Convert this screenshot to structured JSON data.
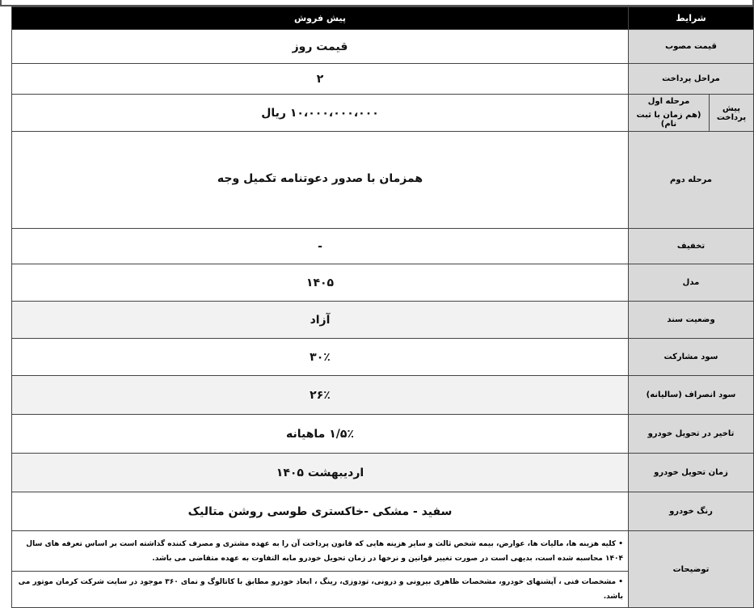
{
  "header": {
    "conditions": "شرایط",
    "presale": "پیش فروش"
  },
  "rows": [
    {
      "label": "قیمت مصوب",
      "value": "قیمت روز"
    },
    {
      "label": "مراحل پرداخت",
      "value": "۲"
    },
    {
      "group": "پیش پرداخت",
      "label": "مرحله اول",
      "sublabel": "(هم زمان با ثبت نام)",
      "value": "۱۰،۰۰۰،۰۰۰،۰۰۰ ریال"
    },
    {
      "label": "مرحله دوم",
      "value": "همزمان با صدور دعوتنامه تکمیل وجه"
    },
    {
      "label": "تخفیف",
      "value": "-"
    },
    {
      "label": "مدل",
      "value": "۱۴۰۵"
    },
    {
      "label": "وضعیت سند",
      "value": "آزاد"
    },
    {
      "label": "سود مشارکت",
      "value": "۳۰٪"
    },
    {
      "label": "سود انصراف (سالیانه)",
      "value": "۲۶٪"
    },
    {
      "label": "تاخیر در تحویل خودرو",
      "value": "۱/۵٪ ماهیانه"
    },
    {
      "label": "زمان تحویل خودرو",
      "value": "اردیبهشت ۱۴۰۵"
    },
    {
      "label": "رنگ خودرو",
      "value": "سفید - مشکی -خاکستری طوسی روشن متالیک"
    }
  ],
  "notes": {
    "label": "توضیحات",
    "items": [
      "• کلیه هزینه ها، مالیات ها، عوارض، بیمه شخص ثالث و سایر هزینه هایی که قانون پرداخت آن را به عهده مشتری و مصرف کننده گذاشته است بر اساس تعرفه های سال ۱۴۰۴ محاسبه شده است، بدیهی است در صورت تغییر قوانین و نرخها در زمان تحویل خودرو مابه التفاوت به عهده متقاضی می باشد.",
      "• مشخصات فنی ، آپشنهای خودرو، مشخصات ظاهری بیرونی و درونی، تودوزی، رینگ ، ابعاد خودرو  مطابق با کاتالوگ و  نمای ۳۶۰ موجود در سایت شرکت کرمان موتور می باشد."
    ]
  }
}
